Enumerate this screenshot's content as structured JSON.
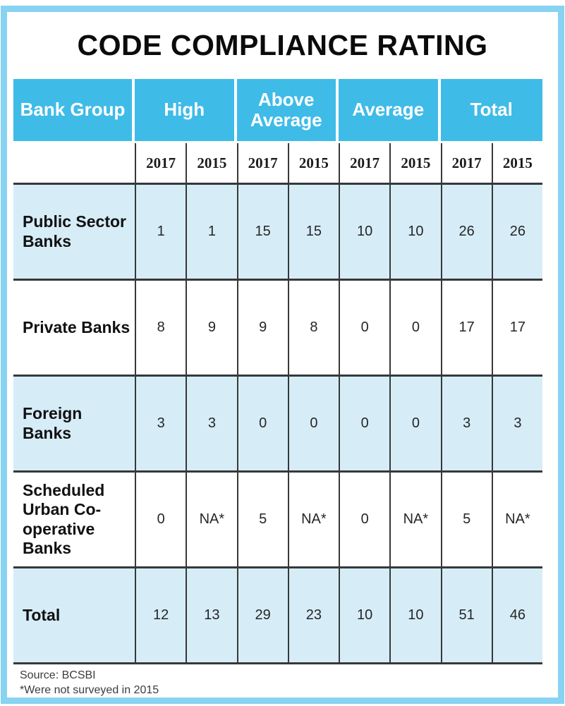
{
  "title": "CODE COMPLIANCE RATING",
  "colors": {
    "header_blue": "#3FBBE8",
    "row_shaded_blue": "#D6EDF8",
    "frame_blue": "#87D3F1",
    "grid_line": "#383838"
  },
  "table": {
    "group_headers": [
      {
        "label": "Bank Group"
      },
      {
        "label": "High"
      },
      {
        "label": "Above Average"
      },
      {
        "label": "Average"
      },
      {
        "label": "Total"
      }
    ],
    "year_headers": [
      "2017",
      "2015",
      "2017",
      "2015",
      "2017",
      "2015",
      "2017",
      "2015"
    ],
    "rows": [
      {
        "label": "Public Sector Banks",
        "shaded": true,
        "values": [
          "1",
          "1",
          "15",
          "15",
          "10",
          "10",
          "26",
          "26"
        ]
      },
      {
        "label": "Private Banks",
        "shaded": false,
        "values": [
          "8",
          "9",
          "9",
          "8",
          "0",
          "0",
          "17",
          "17"
        ]
      },
      {
        "label": "Foreign Banks",
        "shaded": true,
        "values": [
          "3",
          "3",
          "0",
          "0",
          "0",
          "0",
          "3",
          "3"
        ]
      },
      {
        "label": "Scheduled Urban Co-operative Banks",
        "shaded": false,
        "values": [
          "0",
          "NA*",
          "5",
          "NA*",
          "0",
          "NA*",
          "5",
          "NA*"
        ]
      },
      {
        "label": "Total",
        "shaded": true,
        "values": [
          "12",
          "13",
          "29",
          "23",
          "10",
          "10",
          "51",
          "46"
        ]
      }
    ]
  },
  "footer": {
    "source": "Source: BCSBI",
    "note": "*Were not surveyed in 2015"
  },
  "chart_data": {
    "type": "table",
    "title": "CODE COMPLIANCE RATING",
    "columns": [
      "Bank Group",
      "High 2017",
      "High 2015",
      "Above Average 2017",
      "Above Average 2015",
      "Average 2017",
      "Average 2015",
      "Total 2017",
      "Total 2015"
    ],
    "rows": [
      [
        "Public Sector Banks",
        1,
        1,
        15,
        15,
        10,
        10,
        26,
        26
      ],
      [
        "Private Banks",
        8,
        9,
        9,
        8,
        0,
        0,
        17,
        17
      ],
      [
        "Foreign Banks",
        3,
        3,
        0,
        0,
        0,
        0,
        3,
        3
      ],
      [
        "Scheduled Urban Co-operative Banks",
        0,
        "NA*",
        5,
        "NA*",
        0,
        "NA*",
        5,
        "NA*"
      ],
      [
        "Total",
        12,
        13,
        29,
        23,
        10,
        10,
        51,
        46
      ]
    ],
    "source": "Source: BCSBI",
    "footnote": "*Were not surveyed in 2015"
  }
}
